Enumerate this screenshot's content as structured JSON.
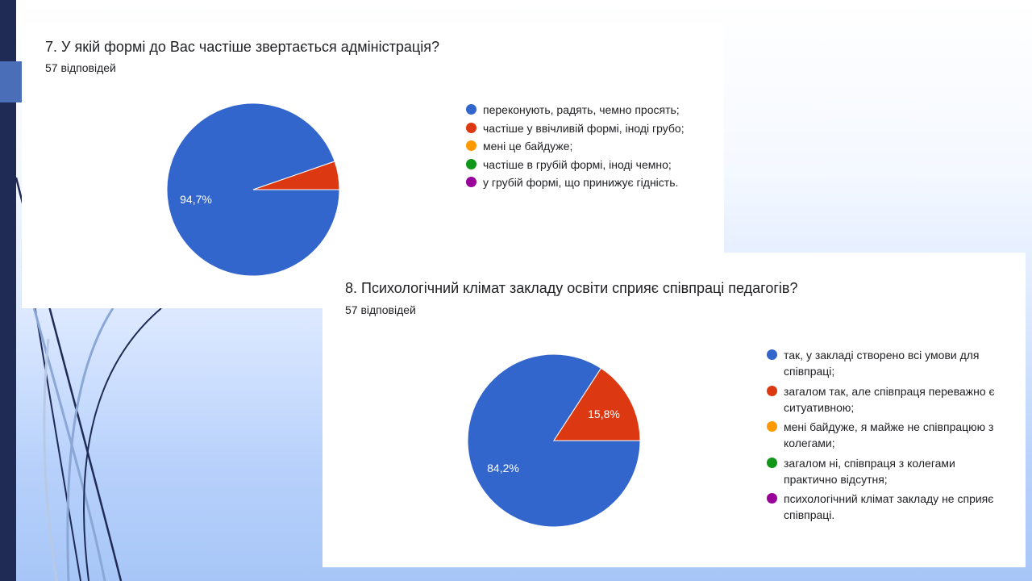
{
  "colors": {
    "blue": "#3366cc",
    "red": "#dc3912",
    "orange": "#ff9900",
    "green": "#109618",
    "purple": "#990099"
  },
  "chart_data": [
    {
      "type": "pie",
      "title": "7. У якій формі до Вас частіше звертається адміністрація?",
      "responses": "57 відповідей",
      "categories": [
        "переконують, радять, чемно просять;",
        "частіше у ввічливій формі, іноді грубо;",
        "мені це байдуже;",
        "частіше в грубій формі, іноді чемно;",
        "у грубій формі, що принижує гідність."
      ],
      "values": [
        94.7,
        5.3,
        0,
        0,
        0
      ],
      "data_labels": [
        "94,7%",
        "",
        "",
        "",
        ""
      ],
      "colors": [
        "#3366cc",
        "#dc3912",
        "#ff9900",
        "#109618",
        "#990099"
      ],
      "legend": "right"
    },
    {
      "type": "pie",
      "title": "8. Психологічний клімат закладу освіти сприяє співпраці педагогів?",
      "responses": "57 відповідей",
      "categories": [
        "так, у закладі створено всі умови для співпраці;",
        "загалом так, але співпраця переважно є ситуативною;",
        "мені байдуже, я майже не співпрацюю з колегами;",
        "загалом ні, співпраця з колегами практично відсутня;",
        "психологічний клімат закладу не сприяє співпраці."
      ],
      "values": [
        84.2,
        15.8,
        0,
        0,
        0
      ],
      "data_labels": [
        "84,2%",
        "15,8%",
        "",
        "",
        ""
      ],
      "colors": [
        "#3366cc",
        "#dc3912",
        "#ff9900",
        "#109618",
        "#990099"
      ],
      "legend": "right"
    }
  ]
}
